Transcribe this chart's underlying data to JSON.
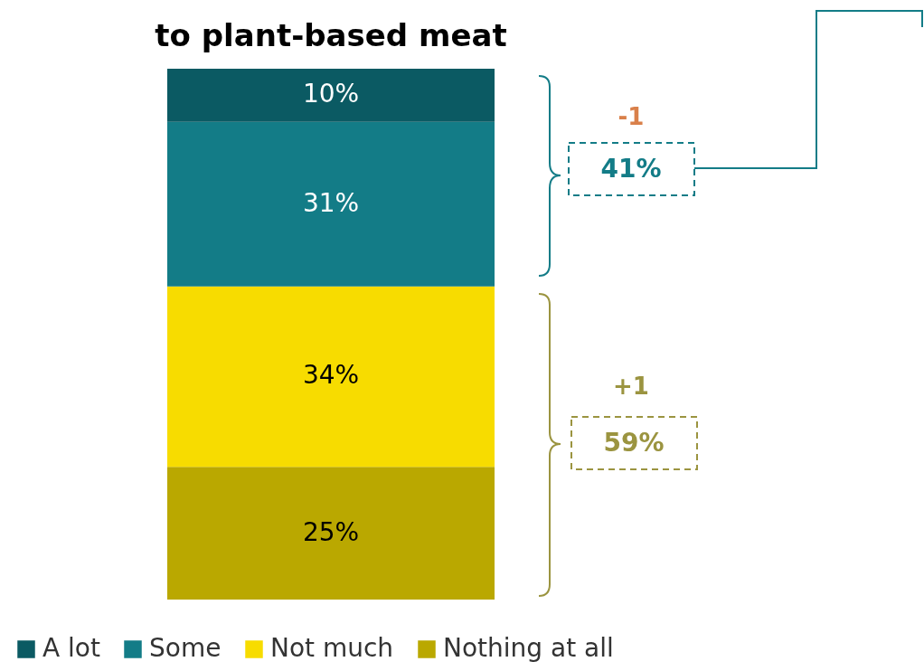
{
  "chart_data": {
    "type": "bar",
    "title": "to plant-based meat",
    "stacked": true,
    "categories": [
      null
    ],
    "series": [
      {
        "name": "Nothing at all",
        "color": "#baa800",
        "values": [
          25
        ],
        "value_labels": [
          "25%"
        ]
      },
      {
        "name": "Not much",
        "color": "#f7dc00",
        "values": [
          34
        ],
        "value_labels": [
          "34%"
        ]
      },
      {
        "name": "Some",
        "color": "#137c87",
        "values": [
          31
        ],
        "value_labels": [
          "31%"
        ]
      },
      {
        "name": "A lot",
        "color": "#0b5a63",
        "values": [
          10
        ],
        "value_labels": [
          "10%"
        ]
      }
    ],
    "ylim": [
      0,
      100
    ],
    "tick_labels": false,
    "legend": "bottom",
    "annotations": [
      "-1",
      "41%",
      "+1",
      "59%"
    ]
  }
}
